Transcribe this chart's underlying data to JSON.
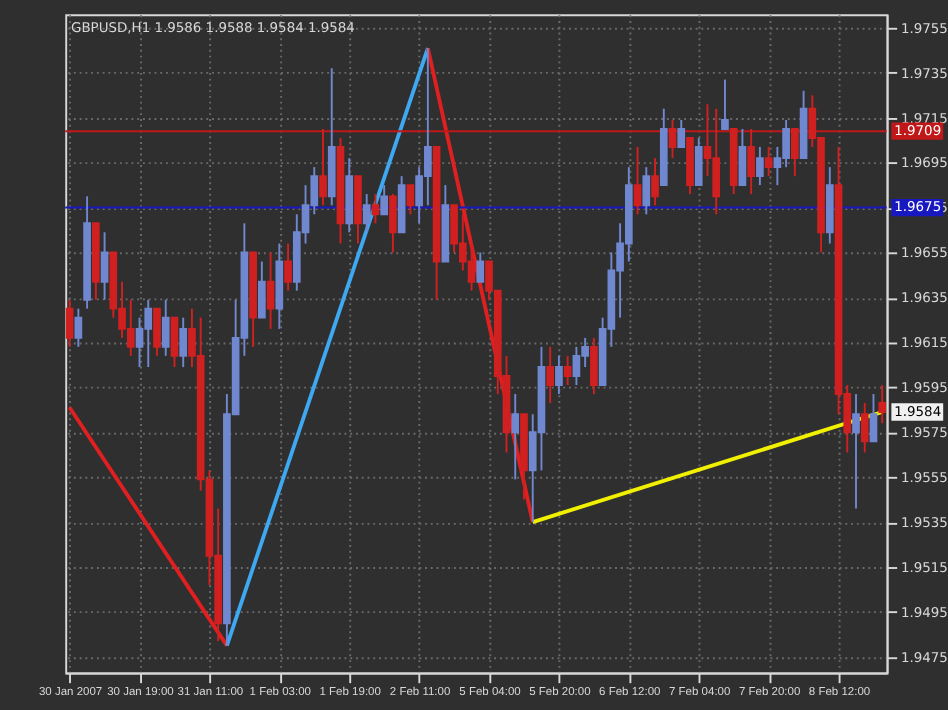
{
  "chart_data": {
    "type": "candlestick",
    "title": "GBPUSD,H1 1.9586 1.9588 1.9584 1.9584",
    "categories": [
      "30 Jan 2007",
      null,
      null,
      null,
      null,
      null,
      null,
      null,
      "30 Jan 19:00",
      null,
      null,
      null,
      null,
      null,
      null,
      null,
      "31 Jan 11:00",
      null,
      null,
      null,
      null,
      null,
      null,
      null,
      "1 Feb 03:00",
      null,
      null,
      null,
      null,
      null,
      null,
      null,
      "1 Feb 19:00",
      null,
      null,
      null,
      null,
      null,
      null,
      null,
      "2 Feb 11:00",
      null,
      null,
      null,
      null,
      null,
      null,
      null,
      "5 Feb 04:00",
      null,
      null,
      null,
      null,
      null,
      null,
      null,
      "5 Feb 20:00",
      null,
      null,
      null,
      null,
      null,
      null,
      null,
      "6 Feb 12:00",
      null,
      null,
      null,
      null,
      null,
      null,
      null,
      "7 Feb 04:00",
      null,
      null,
      null,
      null,
      null,
      null,
      null,
      "7 Feb 20:00",
      null,
      null,
      null,
      null,
      null,
      null,
      null,
      "8 Feb 12:00",
      null,
      null,
      null,
      null,
      null
    ],
    "ohlc": [
      [
        1.963,
        1.9634,
        1.9613,
        1.9617
      ],
      [
        1.9617,
        1.963,
        1.9613,
        1.9626
      ],
      [
        1.9634,
        1.968,
        1.963,
        1.9668
      ],
      [
        1.9668,
        1.9668,
        1.9634,
        1.9642
      ],
      [
        1.9642,
        1.9664,
        1.9634,
        1.9655
      ],
      [
        1.9655,
        1.9655,
        1.9626,
        1.963
      ],
      [
        1.963,
        1.9642,
        1.9617,
        1.9621
      ],
      [
        1.9621,
        1.9634,
        1.9609,
        1.9613
      ],
      [
        1.9613,
        1.9626,
        1.9604,
        1.9621
      ],
      [
        1.9621,
        1.9634,
        1.9604,
        1.963
      ],
      [
        1.963,
        1.963,
        1.9609,
        1.9613
      ],
      [
        1.9613,
        1.9634,
        1.9609,
        1.9626
      ],
      [
        1.9626,
        1.9626,
        1.9604,
        1.9609
      ],
      [
        1.9609,
        1.9626,
        1.9604,
        1.9621
      ],
      [
        1.9621,
        1.963,
        1.9604,
        1.9609
      ],
      [
        1.9609,
        1.9626,
        1.9549,
        1.9554
      ],
      [
        1.9554,
        1.9558,
        1.9507,
        1.952
      ],
      [
        1.952,
        1.9541,
        1.9482,
        1.949
      ],
      [
        1.949,
        1.9592,
        1.948,
        1.9583
      ],
      [
        1.9583,
        1.9634,
        1.9583,
        1.9617
      ],
      [
        1.9617,
        1.9668,
        1.9609,
        1.9655
      ],
      [
        1.9655,
        1.9655,
        1.9613,
        1.9626
      ],
      [
        1.9626,
        1.9651,
        1.9626,
        1.9642
      ],
      [
        1.9642,
        1.9655,
        1.9621,
        1.963
      ],
      [
        1.963,
        1.9659,
        1.9621,
        1.9651
      ],
      [
        1.9651,
        1.9659,
        1.9638,
        1.9642
      ],
      [
        1.9642,
        1.9672,
        1.9638,
        1.9664
      ],
      [
        1.9664,
        1.9685,
        1.9659,
        1.9676
      ],
      [
        1.9676,
        1.9693,
        1.9672,
        1.9689
      ],
      [
        1.9689,
        1.971,
        1.9676,
        1.968
      ],
      [
        1.968,
        1.9737,
        1.9676,
        1.9702
      ],
      [
        1.9702,
        1.9706,
        1.9659,
        1.9668
      ],
      [
        1.9668,
        1.9697,
        1.9664,
        1.9689
      ],
      [
        1.9689,
        1.9689,
        1.9659,
        1.9668
      ],
      [
        1.9668,
        1.9681,
        1.9664,
        1.9676
      ],
      [
        1.9676,
        1.9681,
        1.9668,
        1.9672
      ],
      [
        1.9672,
        1.9685,
        1.9672,
        1.968
      ],
      [
        1.968,
        1.9681,
        1.9655,
        1.9664
      ],
      [
        1.9664,
        1.9689,
        1.9664,
        1.9685
      ],
      [
        1.9685,
        1.9685,
        1.9672,
        1.9676
      ],
      [
        1.9676,
        1.9693,
        1.9668,
        1.9689
      ],
      [
        1.9689,
        1.9746,
        1.9676,
        1.9702
      ],
      [
        1.9702,
        1.9702,
        1.9634,
        1.9651
      ],
      [
        1.9651,
        1.9685,
        1.9651,
        1.9676
      ],
      [
        1.9676,
        1.9676,
        1.9655,
        1.9659
      ],
      [
        1.9659,
        1.9672,
        1.9647,
        1.9651
      ],
      [
        1.9651,
        1.9659,
        1.9638,
        1.9642
      ],
      [
        1.9642,
        1.9655,
        1.9642,
        1.9651
      ],
      [
        1.9651,
        1.9651,
        1.9634,
        1.9638
      ],
      [
        1.9638,
        1.9638,
        1.9592,
        1.96
      ],
      [
        1.96,
        1.9609,
        1.9566,
        1.9575
      ],
      [
        1.9575,
        1.9592,
        1.9554,
        1.9583
      ],
      [
        1.9583,
        1.9583,
        1.9545,
        1.9558
      ],
      [
        1.9558,
        1.9583,
        1.9535,
        1.9575
      ],
      [
        1.9575,
        1.9613,
        1.9558,
        1.9604
      ],
      [
        1.9604,
        1.9613,
        1.9588,
        1.9596
      ],
      [
        1.9596,
        1.9609,
        1.9592,
        1.9604
      ],
      [
        1.9604,
        1.9609,
        1.9596,
        1.96
      ],
      [
        1.96,
        1.9613,
        1.9596,
        1.9609
      ],
      [
        1.9609,
        1.9617,
        1.9604,
        1.9613
      ],
      [
        1.9613,
        1.9617,
        1.9592,
        1.9596
      ],
      [
        1.9596,
        1.9626,
        1.9596,
        1.9621
      ],
      [
        1.9621,
        1.9655,
        1.9613,
        1.9647
      ],
      [
        1.9647,
        1.9668,
        1.9626,
        1.9659
      ],
      [
        1.9659,
        1.9693,
        1.9651,
        1.9685
      ],
      [
        1.9685,
        1.9702,
        1.9672,
        1.9676
      ],
      [
        1.9676,
        1.9693,
        1.9672,
        1.9689
      ],
      [
        1.9689,
        1.9697,
        1.9676,
        1.968
      ],
      [
        1.9685,
        1.9719,
        1.9685,
        1.971
      ],
      [
        1.971,
        1.9714,
        1.9697,
        1.9702
      ],
      [
        1.9702,
        1.9714,
        1.9702,
        1.971
      ],
      [
        1.9706,
        1.9706,
        1.9681,
        1.9685
      ],
      [
        1.9685,
        1.9706,
        1.9685,
        1.9702
      ],
      [
        1.9702,
        1.9721,
        1.9689,
        1.9697
      ],
      [
        1.9697,
        1.9719,
        1.9672,
        1.968
      ],
      [
        1.971,
        1.9732,
        1.971,
        1.9714
      ],
      [
        1.971,
        1.971,
        1.9681,
        1.9685
      ],
      [
        1.9685,
        1.971,
        1.9685,
        1.9702
      ],
      [
        1.9702,
        1.971,
        1.9681,
        1.9689
      ],
      [
        1.9689,
        1.9702,
        1.9685,
        1.9697
      ],
      [
        1.9697,
        1.9702,
        1.9689,
        1.9693
      ],
      [
        1.9693,
        1.9702,
        1.9685,
        1.9697
      ],
      [
        1.9697,
        1.9714,
        1.9693,
        1.971
      ],
      [
        1.971,
        1.971,
        1.9689,
        1.9697
      ],
      [
        1.9697,
        1.9727,
        1.9697,
        1.9719
      ],
      [
        1.9719,
        1.9725,
        1.9702,
        1.9706
      ],
      [
        1.9706,
        1.9706,
        1.9655,
        1.9664
      ],
      [
        1.9664,
        1.9693,
        1.9659,
        1.9685
      ],
      [
        1.9685,
        1.9702,
        1.9583,
        1.9592
      ],
      [
        1.9592,
        1.9596,
        1.9566,
        1.9575
      ],
      [
        1.9575,
        1.9592,
        1.9541,
        1.9583
      ],
      [
        1.9583,
        1.9588,
        1.9566,
        1.9571
      ],
      [
        1.9571,
        1.9592,
        1.9571,
        1.9583
      ],
      [
        1.9588,
        1.9596,
        1.9579,
        1.9584
      ]
    ],
    "series": [
      {
        "type": "line",
        "color": "#e02020",
        "values": [
          1.9586,
          null,
          null,
          null,
          null,
          null,
          null,
          null,
          null,
          null,
          null,
          null,
          null,
          null,
          null,
          null,
          null,
          null,
          1.948,
          null,
          null,
          null,
          null,
          null,
          null,
          null,
          null,
          null,
          null,
          null,
          null,
          null,
          null,
          null,
          null,
          null,
          null,
          null,
          null,
          null,
          null,
          null,
          null,
          null,
          null,
          null,
          null,
          null,
          null,
          null,
          null,
          null,
          null,
          null,
          null,
          null,
          null,
          null,
          null,
          null,
          null,
          null,
          null,
          null,
          null,
          null,
          null,
          null,
          null,
          null,
          null,
          null,
          null,
          null,
          null,
          null,
          null,
          null,
          null,
          null,
          null,
          null,
          null,
          null,
          null,
          null,
          null,
          null,
          null,
          null,
          null,
          null,
          null,
          null
        ]
      },
      {
        "type": "line",
        "color": "#3ea8f0",
        "values": [
          null,
          null,
          null,
          null,
          null,
          null,
          null,
          null,
          null,
          null,
          null,
          null,
          null,
          null,
          null,
          null,
          null,
          null,
          1.948,
          null,
          null,
          null,
          null,
          null,
          null,
          null,
          null,
          null,
          null,
          null,
          null,
          null,
          null,
          null,
          null,
          null,
          null,
          null,
          null,
          null,
          null,
          1.9746,
          null,
          null,
          null,
          null,
          null,
          null,
          null,
          null,
          null,
          null,
          null,
          null,
          null,
          null,
          null,
          null,
          null,
          null,
          null,
          null,
          null,
          null,
          null,
          null,
          null,
          null,
          null,
          null,
          null,
          null,
          null,
          null,
          null,
          null,
          null,
          null,
          null,
          null,
          null,
          null,
          null,
          null,
          null,
          null,
          null,
          null,
          null,
          null,
          null,
          null,
          null,
          null
        ]
      },
      {
        "type": "line",
        "color": "#e02020",
        "values": [
          null,
          null,
          null,
          null,
          null,
          null,
          null,
          null,
          null,
          null,
          null,
          null,
          null,
          null,
          null,
          null,
          null,
          null,
          null,
          null,
          null,
          null,
          null,
          null,
          null,
          null,
          null,
          null,
          null,
          null,
          null,
          null,
          null,
          null,
          null,
          null,
          null,
          null,
          null,
          null,
          null,
          1.9746,
          null,
          null,
          null,
          null,
          null,
          null,
          null,
          null,
          null,
          null,
          null,
          1.9535,
          null,
          null,
          null,
          null,
          null,
          null,
          null,
          null,
          null,
          null,
          null,
          null,
          null,
          null,
          null,
          null,
          null,
          null,
          null,
          null,
          null,
          null,
          null,
          null,
          null,
          null,
          null,
          null,
          null,
          null,
          null,
          null,
          null,
          null,
          null,
          null,
          null,
          null,
          null,
          null
        ]
      },
      {
        "type": "line",
        "color": "#f0f000",
        "values": [
          null,
          null,
          null,
          null,
          null,
          null,
          null,
          null,
          null,
          null,
          null,
          null,
          null,
          null,
          null,
          null,
          null,
          null,
          null,
          null,
          null,
          null,
          null,
          null,
          null,
          null,
          null,
          null,
          null,
          null,
          null,
          null,
          null,
          null,
          null,
          null,
          null,
          null,
          null,
          null,
          null,
          null,
          null,
          null,
          null,
          null,
          null,
          null,
          null,
          null,
          null,
          null,
          null,
          1.9535,
          null,
          null,
          null,
          null,
          null,
          null,
          null,
          null,
          null,
          null,
          null,
          null,
          null,
          null,
          null,
          null,
          null,
          null,
          null,
          null,
          null,
          null,
          null,
          null,
          null,
          null,
          null,
          null,
          null,
          null,
          null,
          null,
          null,
          null,
          null,
          null,
          null,
          null,
          null,
          1.9584
        ]
      }
    ],
    "ylim": [
      1.9468,
      1.9761
    ],
    "yticks": [
      1.9475,
      1.9495,
      1.9515,
      1.9535,
      1.9555,
      1.9575,
      1.9595,
      1.9615,
      1.9635,
      1.9655,
      1.9675,
      1.9695,
      1.9715,
      1.9735,
      1.9755
    ],
    "ref_lines": [
      {
        "axis": "y",
        "value": 1.9709,
        "label": "1.9709",
        "color": "#c01818"
      },
      {
        "axis": "y",
        "value": 1.9675,
        "label": "1.9675",
        "color": "#1818c0"
      }
    ],
    "annotations": [
      {
        "text": "1.9584",
        "y": 1.9584
      }
    ],
    "grid": true,
    "line_style": "solid"
  }
}
